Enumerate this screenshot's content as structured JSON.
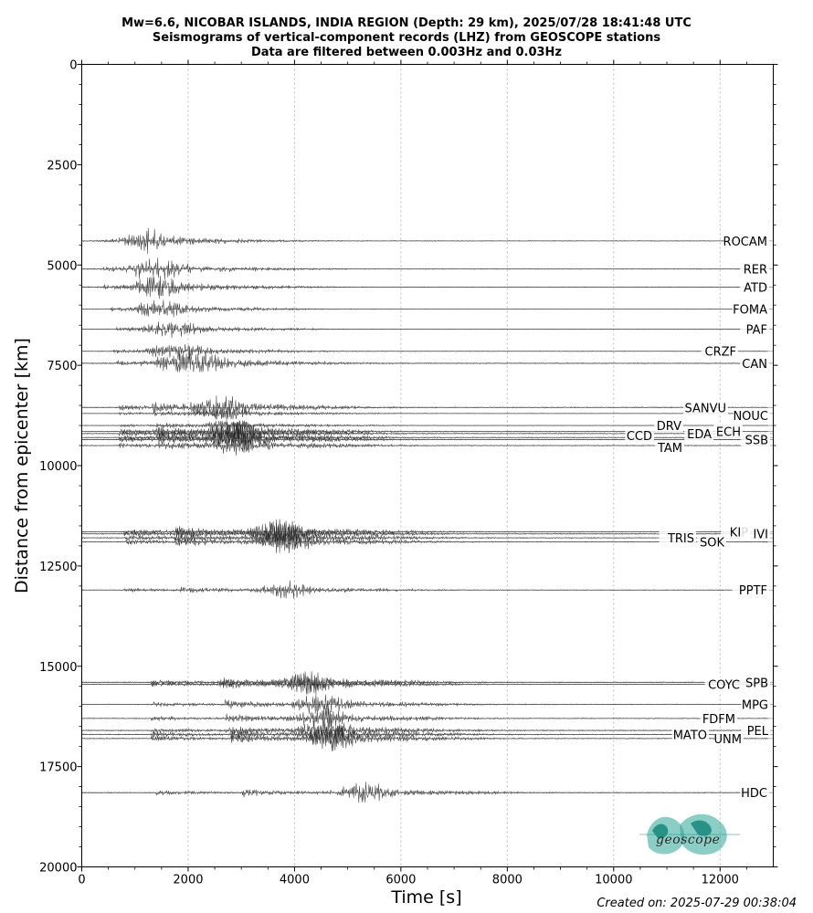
{
  "title": {
    "line1": "Mw=6.6, NICOBAR ISLANDS, INDIA REGION (Depth: 29 km), 2025/07/28 18:41:48 UTC",
    "line2": "Seismograms of vertical-component records (LHZ) from GEOSCOPE stations",
    "line3": "Data are filtered between 0.003Hz and 0.03Hz"
  },
  "footer": {
    "created": "Created on: 2025-07-29 00:38:04"
  },
  "logo": {
    "text": "geoscope",
    "icon": "geoscope-globe-logo",
    "color": "#2ba597"
  },
  "chart_data": {
    "type": "line",
    "xlabel": "Time [s]",
    "ylabel": "Distance from epicenter [km]",
    "xlim": [
      0,
      13000
    ],
    "ylim": [
      20000,
      0
    ],
    "xticks": [
      "0",
      "2000",
      "4000",
      "6000",
      "8000",
      "10000",
      "12000"
    ],
    "yticks": [
      "0",
      "2500",
      "5000",
      "7500",
      "10000",
      "12500",
      "15000",
      "17500",
      "20000"
    ],
    "grid": "vertical dotted",
    "series": [
      {
        "name": "ROCAM",
        "distance": 4400,
        "p_arrival": 1100,
        "s_arrival": 1150,
        "surface_wave": 1150,
        "amp": 0.7
      },
      {
        "name": "RER",
        "distance": 5100,
        "p_arrival": 400,
        "s_arrival": 950,
        "surface_wave": 1450,
        "amp": 0.8
      },
      {
        "name": "ATD",
        "distance": 5550,
        "p_arrival": 400,
        "s_arrival": 1000,
        "surface_wave": 1500,
        "amp": 0.8
      },
      {
        "name": "FOMA",
        "distance": 6100,
        "p_arrival": 550,
        "s_arrival": 1050,
        "surface_wave": 1550,
        "amp": 0.6
      },
      {
        "name": "PAF",
        "distance": 6600,
        "p_arrival": 650,
        "s_arrival": 1150,
        "surface_wave": 1750,
        "amp": 0.6
      },
      {
        "name": "CRZF",
        "distance": 7150,
        "p_arrival": 600,
        "s_arrival": 1200,
        "surface_wave": 1850,
        "amp": 0.6
      },
      {
        "name": "CAN",
        "distance": 7450,
        "p_arrival": 650,
        "s_arrival": 1400,
        "surface_wave": 2150,
        "amp": 1.0
      },
      {
        "name": "SANVU",
        "distance": 8550,
        "p_arrival": 700,
        "s_arrival": 1300,
        "surface_wave": 2600,
        "amp": 1.0
      },
      {
        "name": "NOUC",
        "distance": 8700,
        "p_arrival": 700,
        "s_arrival": 1350,
        "surface_wave": 2700,
        "amp": 0.5
      },
      {
        "name": "DRV",
        "distance": 9000,
        "p_arrival": 700,
        "s_arrival": 1400,
        "surface_wave": 2800,
        "amp": 0.5
      },
      {
        "name": "EDA",
        "distance": 9200,
        "p_arrival": 700,
        "s_arrival": 1400,
        "surface_wave": 2850,
        "amp": 0.9
      },
      {
        "name": "ECH",
        "distance": 9150,
        "p_arrival": 700,
        "s_arrival": 1400,
        "surface_wave": 2850,
        "amp": 0.9
      },
      {
        "name": "CCD",
        "distance": 9300,
        "p_arrival": 700,
        "s_arrival": 1450,
        "surface_wave": 2900,
        "amp": 0.9
      },
      {
        "name": "SSB",
        "distance": 9350,
        "p_arrival": 700,
        "s_arrival": 1450,
        "surface_wave": 2950,
        "amp": 0.9
      },
      {
        "name": "TAM",
        "distance": 9500,
        "p_arrival": 700,
        "s_arrival": 1450,
        "surface_wave": 3000,
        "amp": 0.9
      },
      {
        "name": "KIP",
        "distance": 11650,
        "p_arrival": 800,
        "s_arrival": 1750,
        "surface_wave": 3700,
        "amp": 1.0
      },
      {
        "name": "IVI",
        "distance": 11700,
        "p_arrival": 800,
        "s_arrival": 1750,
        "surface_wave": 3750,
        "amp": 1.0
      },
      {
        "name": "TRIS",
        "distance": 11800,
        "p_arrival": 800,
        "s_arrival": 1750,
        "surface_wave": 3800,
        "amp": 1.0
      },
      {
        "name": "SOK",
        "distance": 11900,
        "p_arrival": 800,
        "s_arrival": 1750,
        "surface_wave": 3850,
        "amp": 1.0
      },
      {
        "name": "PPTF",
        "distance": 13100,
        "p_arrival": 800,
        "s_arrival": 1850,
        "surface_wave": 3850,
        "amp": 0.7
      },
      {
        "name": "COYC",
        "distance": 15450,
        "p_arrival": 1300,
        "s_arrival": 2600,
        "surface_wave": 4300,
        "amp": 0.9
      },
      {
        "name": "SPB",
        "distance": 15400,
        "p_arrival": 1300,
        "s_arrival": 2600,
        "surface_wave": 4200,
        "amp": 0.9
      },
      {
        "name": "MPG",
        "distance": 15950,
        "p_arrival": 1300,
        "s_arrival": 2700,
        "surface_wave": 4500,
        "amp": 0.9
      },
      {
        "name": "FDFM",
        "distance": 16300,
        "p_arrival": 1300,
        "s_arrival": 2700,
        "surface_wave": 4550,
        "amp": 0.9
      },
      {
        "name": "PEL",
        "distance": 16600,
        "p_arrival": 1300,
        "s_arrival": 2700,
        "surface_wave": 4600,
        "amp": 1.0
      },
      {
        "name": "MATO",
        "distance": 16700,
        "p_arrival": 1300,
        "s_arrival": 2800,
        "surface_wave": 4650,
        "amp": 1.0
      },
      {
        "name": "UNM",
        "distance": 16800,
        "p_arrival": 1300,
        "s_arrival": 2800,
        "surface_wave": 4700,
        "amp": 1.0
      },
      {
        "name": "HDC",
        "distance": 18150,
        "p_arrival": 1400,
        "s_arrival": 3000,
        "surface_wave": 5300,
        "amp": 0.9
      }
    ]
  }
}
